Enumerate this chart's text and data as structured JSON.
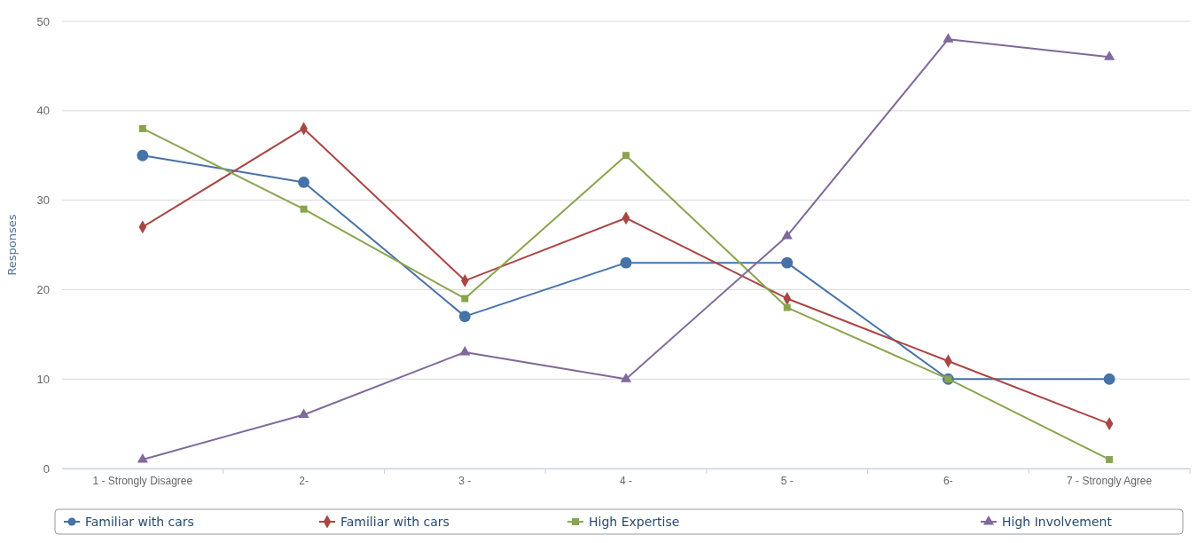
{
  "chart_data": {
    "type": "line",
    "ylabel": "Responses",
    "categories": [
      "1 - Strongly Disagree",
      "2-",
      "3 -",
      "4 -",
      "5 -",
      "6-",
      "7 - Strongly Agree"
    ],
    "series": [
      {
        "name": "Familiar with cars",
        "color": "#4572a7",
        "marker": "circle",
        "values": [
          35,
          32,
          17,
          23,
          23,
          10,
          10
        ]
      },
      {
        "name": "Familiar with cars",
        "color": "#aa4643",
        "marker": "diamond",
        "values": [
          27,
          38,
          21,
          28,
          19,
          12,
          5
        ]
      },
      {
        "name": "High Expertise",
        "color": "#89a54e",
        "marker": "square",
        "values": [
          38,
          29,
          19,
          35,
          18,
          10,
          1
        ]
      },
      {
        "name": "High Involvement",
        "color": "#80699b",
        "marker": "triangle",
        "values": [
          1,
          6,
          13,
          10,
          26,
          48,
          46
        ]
      }
    ],
    "ylim": [
      0,
      50
    ],
    "yticks": [
      0,
      10,
      20,
      30,
      40,
      50
    ],
    "grid": "y",
    "legend": "bottom"
  }
}
